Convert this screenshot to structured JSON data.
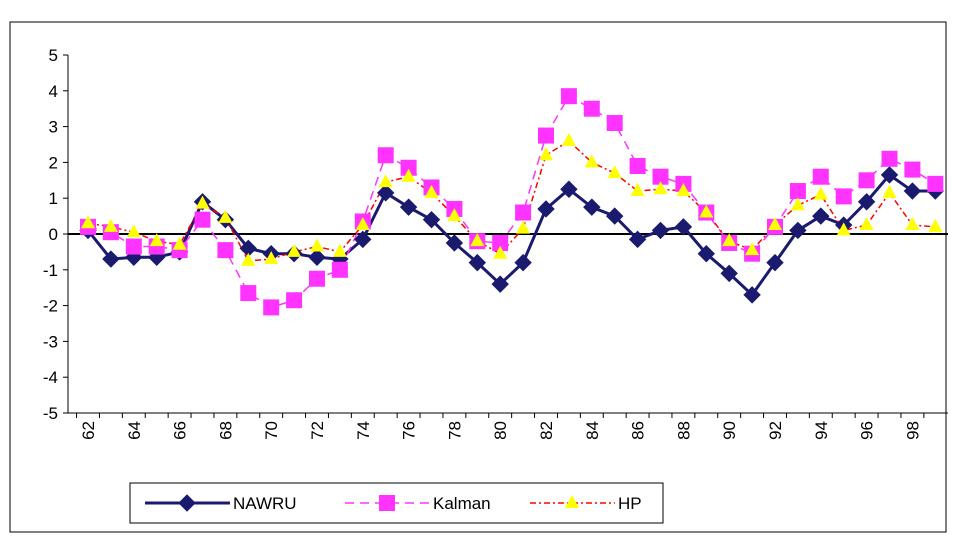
{
  "chart_data": {
    "type": "line",
    "categories": [
      "62",
      null,
      "64",
      null,
      "66",
      null,
      "68",
      null,
      "70",
      null,
      "72",
      null,
      "74",
      null,
      "76",
      null,
      "78",
      null,
      "80",
      null,
      "82",
      null,
      "84",
      null,
      "86",
      null,
      "88",
      null,
      "90",
      null,
      "92",
      null,
      "94",
      null,
      "96",
      null,
      "98",
      null
    ],
    "series": [
      {
        "name": "NAWRU",
        "color": "#1a1a6e",
        "marker": "diamond",
        "dash": "solid",
        "values": [
          0.1,
          -0.7,
          -0.65,
          -0.65,
          -0.5,
          0.9,
          0.4,
          -0.4,
          -0.55,
          -0.55,
          -0.65,
          -0.7,
          -0.15,
          1.15,
          0.75,
          0.4,
          -0.25,
          -0.8,
          -1.4,
          -0.8,
          0.7,
          1.25,
          0.75,
          0.5,
          -0.15,
          0.1,
          0.2,
          -0.55,
          -1.1,
          -1.7,
          -0.8,
          0.1,
          0.5,
          0.25,
          0.9,
          1.65,
          1.2,
          1.2
        ]
      },
      {
        "name": "Kalman",
        "color": "#ff33ff",
        "marker": "square",
        "dash": "dashed",
        "values": [
          0.2,
          0.05,
          -0.35,
          -0.35,
          -0.45,
          0.4,
          -0.45,
          -1.65,
          -2.05,
          -1.85,
          -1.25,
          -1.0,
          0.35,
          2.2,
          1.85,
          1.3,
          0.7,
          -0.2,
          -0.25,
          0.6,
          2.75,
          3.85,
          3.5,
          3.1,
          1.9,
          1.6,
          1.4,
          0.6,
          -0.25,
          -0.55,
          0.2,
          1.2,
          1.6,
          1.05,
          1.5,
          2.1,
          1.8,
          1.4
        ]
      },
      {
        "name": "HP",
        "color": "#ff0000",
        "marker": "triangle",
        "marker_color": "#ffff00",
        "dash": "dashdot",
        "values": [
          0.3,
          0.2,
          0.05,
          -0.2,
          -0.3,
          0.85,
          0.45,
          -0.75,
          -0.7,
          -0.5,
          -0.35,
          -0.5,
          0.25,
          1.45,
          1.6,
          1.15,
          0.5,
          -0.2,
          -0.55,
          0.15,
          2.2,
          2.6,
          2.0,
          1.7,
          1.2,
          1.25,
          1.2,
          0.6,
          -0.2,
          -0.45,
          0.25,
          0.8,
          1.1,
          0.1,
          0.25,
          1.15,
          0.25,
          0.2
        ]
      }
    ],
    "ylim": [
      -5,
      5
    ],
    "yticks": [
      -5,
      -4,
      -3,
      -2,
      -1,
      0,
      1,
      2,
      3,
      4,
      5
    ],
    "grid": false,
    "legend": "bottom"
  }
}
